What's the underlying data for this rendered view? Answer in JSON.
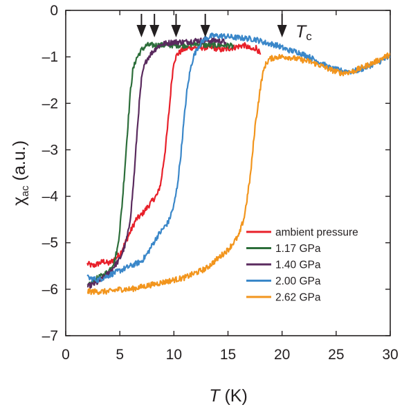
{
  "chart_data": {
    "type": "line",
    "xlabel": {
      "symbol": "T",
      "unit": " (K)"
    },
    "ylabel": {
      "symbol": "χ",
      "sub": "ac",
      "unit": " (a.u.)"
    },
    "xlim": [
      0,
      30
    ],
    "ylim": [
      -7,
      0
    ],
    "xticks": [
      0,
      5,
      10,
      15,
      20,
      25,
      30
    ],
    "yticks": [
      0,
      -1,
      -2,
      -3,
      -4,
      -5,
      -6,
      -7
    ],
    "xtick_labels": [
      "0",
      "5",
      "10",
      "15",
      "20",
      "25",
      "30"
    ],
    "ytick_labels": [
      "0",
      "–1",
      "–2",
      "–3",
      "–4",
      "–5",
      "–6",
      "–7"
    ],
    "legend_position": "bottom-right",
    "annotation": {
      "symbol": "T",
      "sub": "c"
    },
    "arrows_at_T": [
      7.0,
      8.2,
      10.2,
      12.9,
      20.0
    ],
    "series": [
      {
        "name": "ambient pressure",
        "color": "#e8202a",
        "points": [
          [
            2.0,
            -5.45
          ],
          [
            2.5,
            -5.5
          ],
          [
            3.0,
            -5.45
          ],
          [
            3.5,
            -5.4
          ],
          [
            4.0,
            -5.45
          ],
          [
            4.5,
            -5.35
          ],
          [
            5.0,
            -5.25
          ],
          [
            5.5,
            -5.0
          ],
          [
            6.0,
            -4.75
          ],
          [
            6.5,
            -4.5
          ],
          [
            7.0,
            -4.4
          ],
          [
            7.5,
            -4.25
          ],
          [
            8.0,
            -4.1
          ],
          [
            8.5,
            -3.95
          ],
          [
            8.8,
            -3.7
          ],
          [
            9.0,
            -3.35
          ],
          [
            9.2,
            -3.0
          ],
          [
            9.4,
            -2.55
          ],
          [
            9.6,
            -2.05
          ],
          [
            9.8,
            -1.5
          ],
          [
            10.0,
            -1.1
          ],
          [
            10.3,
            -0.95
          ],
          [
            10.8,
            -0.85
          ],
          [
            11.5,
            -0.8
          ],
          [
            12.5,
            -0.8
          ],
          [
            13.5,
            -0.8
          ],
          [
            14.5,
            -0.85
          ],
          [
            15.5,
            -0.8
          ],
          [
            16.5,
            -0.75
          ],
          [
            17.2,
            -0.85
          ],
          [
            17.6,
            -0.8
          ],
          [
            18.0,
            -0.95
          ]
        ]
      },
      {
        "name": "1.17 GPa",
        "color": "#2c6e3a",
        "points": [
          [
            2.0,
            -5.95
          ],
          [
            2.5,
            -5.85
          ],
          [
            3.0,
            -5.75
          ],
          [
            3.5,
            -5.7
          ],
          [
            4.0,
            -5.6
          ],
          [
            4.5,
            -5.4
          ],
          [
            4.8,
            -5.1
          ],
          [
            5.0,
            -4.7
          ],
          [
            5.2,
            -4.2
          ],
          [
            5.4,
            -3.6
          ],
          [
            5.6,
            -2.95
          ],
          [
            5.8,
            -2.3
          ],
          [
            6.0,
            -1.7
          ],
          [
            6.2,
            -1.3
          ],
          [
            6.5,
            -1.05
          ],
          [
            7.0,
            -0.85
          ],
          [
            7.5,
            -0.75
          ],
          [
            8.5,
            -0.75
          ],
          [
            9.5,
            -0.75
          ],
          [
            11.0,
            -0.75
          ],
          [
            12.0,
            -0.72
          ],
          [
            13.0,
            -0.75
          ],
          [
            14.0,
            -0.75
          ],
          [
            15.0,
            -0.75
          ],
          [
            15.5,
            -0.78
          ]
        ]
      },
      {
        "name": "1.40 GPa",
        "color": "#5a2a5e",
        "points": [
          [
            2.0,
            -5.95
          ],
          [
            2.5,
            -5.9
          ],
          [
            3.0,
            -5.85
          ],
          [
            3.5,
            -5.75
          ],
          [
            4.0,
            -5.65
          ],
          [
            4.5,
            -5.5
          ],
          [
            5.0,
            -5.35
          ],
          [
            5.5,
            -5.05
          ],
          [
            5.8,
            -4.75
          ],
          [
            6.0,
            -4.4
          ],
          [
            6.2,
            -3.9
          ],
          [
            6.4,
            -3.3
          ],
          [
            6.6,
            -2.6
          ],
          [
            6.8,
            -2.0
          ],
          [
            7.0,
            -1.5
          ],
          [
            7.2,
            -1.25
          ],
          [
            7.5,
            -1.05
          ],
          [
            8.0,
            -0.9
          ],
          [
            8.5,
            -0.78
          ],
          [
            9.0,
            -0.72
          ],
          [
            10.0,
            -0.68
          ],
          [
            11.0,
            -0.68
          ],
          [
            12.0,
            -0.65
          ],
          [
            13.0,
            -0.65
          ],
          [
            14.0,
            -0.65
          ],
          [
            14.8,
            -0.68
          ]
        ]
      },
      {
        "name": "2.00 GPa",
        "color": "#3a87c9",
        "points": [
          [
            2.0,
            -5.75
          ],
          [
            3.0,
            -5.8
          ],
          [
            4.0,
            -5.7
          ],
          [
            5.0,
            -5.6
          ],
          [
            6.0,
            -5.5
          ],
          [
            7.0,
            -5.4
          ],
          [
            7.5,
            -5.25
          ],
          [
            8.0,
            -5.05
          ],
          [
            8.5,
            -4.85
          ],
          [
            9.0,
            -4.7
          ],
          [
            9.5,
            -4.55
          ],
          [
            10.0,
            -4.2
          ],
          [
            10.3,
            -3.8
          ],
          [
            10.6,
            -3.2
          ],
          [
            10.8,
            -2.7
          ],
          [
            11.0,
            -2.2
          ],
          [
            11.2,
            -1.75
          ],
          [
            11.5,
            -1.3
          ],
          [
            11.8,
            -1.0
          ],
          [
            12.2,
            -0.8
          ],
          [
            12.8,
            -0.62
          ],
          [
            13.5,
            -0.55
          ],
          [
            14.5,
            -0.55
          ],
          [
            15.5,
            -0.58
          ],
          [
            16.5,
            -0.6
          ],
          [
            17.5,
            -0.62
          ],
          [
            18.5,
            -0.7
          ],
          [
            19.5,
            -0.75
          ],
          [
            20.5,
            -0.85
          ],
          [
            21.5,
            -0.9
          ],
          [
            22.5,
            -1.0
          ],
          [
            23.5,
            -1.12
          ],
          [
            24.5,
            -1.25
          ],
          [
            25.5,
            -1.3
          ],
          [
            26.5,
            -1.32
          ],
          [
            27.5,
            -1.25
          ],
          [
            28.5,
            -1.15
          ],
          [
            29.5,
            -1.05
          ],
          [
            30.0,
            -1.0
          ]
        ]
      },
      {
        "name": "2.62 GPa",
        "color": "#f2951d",
        "points": [
          [
            2.0,
            -6.05
          ],
          [
            3.0,
            -6.05
          ],
          [
            4.0,
            -6.05
          ],
          [
            5.0,
            -6.0
          ],
          [
            6.0,
            -6.0
          ],
          [
            7.0,
            -5.95
          ],
          [
            8.0,
            -5.9
          ],
          [
            9.0,
            -5.85
          ],
          [
            10.0,
            -5.8
          ],
          [
            11.0,
            -5.75
          ],
          [
            12.0,
            -5.65
          ],
          [
            13.0,
            -5.55
          ],
          [
            14.0,
            -5.35
          ],
          [
            15.0,
            -5.15
          ],
          [
            16.0,
            -4.85
          ],
          [
            16.5,
            -4.45
          ],
          [
            16.8,
            -4.0
          ],
          [
            17.1,
            -3.5
          ],
          [
            17.3,
            -3.0
          ],
          [
            17.5,
            -2.5
          ],
          [
            17.8,
            -2.0
          ],
          [
            18.1,
            -1.5
          ],
          [
            18.4,
            -1.2
          ],
          [
            18.8,
            -1.05
          ],
          [
            19.5,
            -1.0
          ],
          [
            20.5,
            -1.0
          ],
          [
            21.5,
            -1.05
          ],
          [
            22.5,
            -1.1
          ],
          [
            23.5,
            -1.18
          ],
          [
            24.5,
            -1.28
          ],
          [
            25.5,
            -1.35
          ],
          [
            26.5,
            -1.32
          ],
          [
            27.5,
            -1.22
          ],
          [
            28.5,
            -1.12
          ],
          [
            29.5,
            -1.0
          ],
          [
            30.0,
            -0.95
          ]
        ]
      }
    ]
  }
}
